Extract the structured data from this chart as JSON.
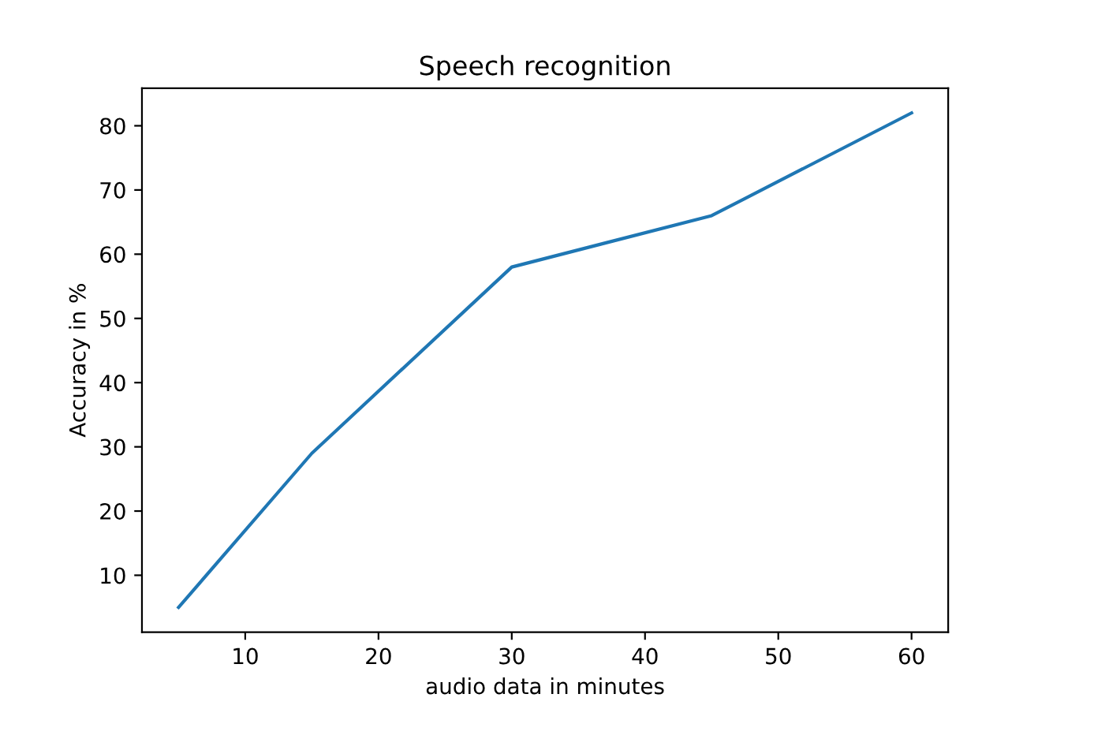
{
  "chart_data": {
    "type": "line",
    "title": "Speech recognition",
    "xlabel": "audio data in minutes",
    "ylabel": "Accuracy in %",
    "x": [
      5,
      15,
      30,
      45,
      60
    ],
    "series": [
      {
        "color": "#1f77b4",
        "values": [
          5,
          29,
          58,
          66,
          82
        ]
      }
    ],
    "xlim": [
      2.25,
      62.75
    ],
    "xticks": [
      10,
      20,
      30,
      40,
      50,
      60
    ],
    "ylim": [
      1.15,
      85.85
    ],
    "yticks": [
      10,
      20,
      30,
      40,
      50,
      60,
      70,
      80
    ],
    "grid": false,
    "legend": false
  }
}
